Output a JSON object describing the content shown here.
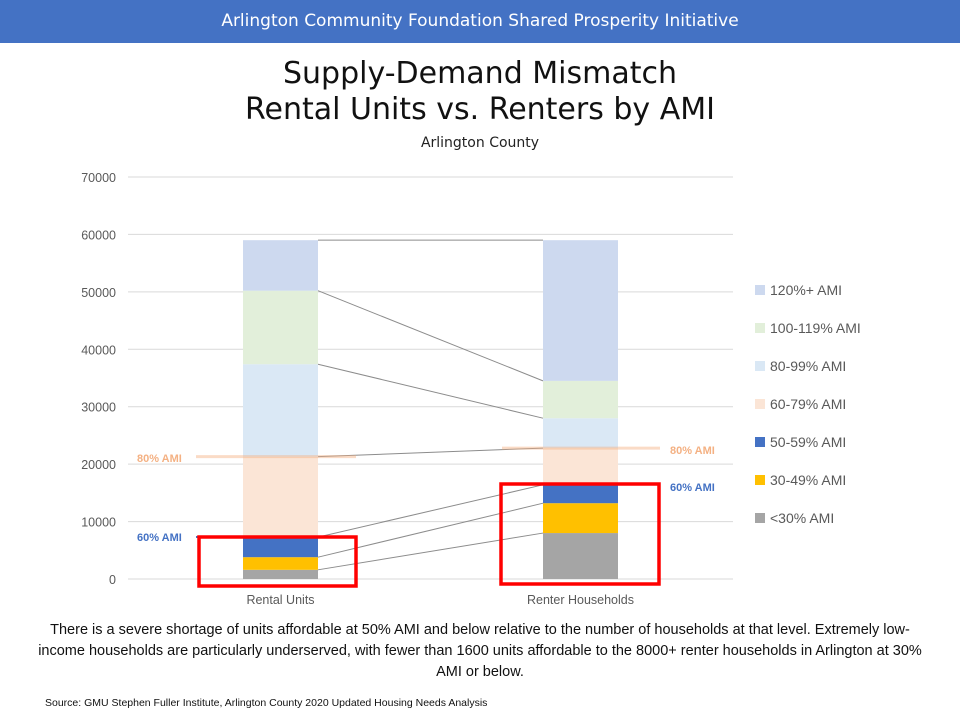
{
  "banner": "Arlington Community Foundation Shared Prosperity Initiative",
  "title_line1": "Supply-Demand  Mismatch",
  "title_line2": "Rental Units vs. Renters by AMI",
  "subtitle": "Arlington County",
  "caption": "There is a severe shortage of units affordable at 50% AMI and below relative to the number of households at that level. Extremely low-income households are particularly underserved, with fewer than 1600 units affordable to the 8000+ renter households in Arlington at 30% AMI or below.",
  "source": "Source: GMU Stephen  Fuller Institute, Arlington County 2020 Updated Housing Needs Analysis",
  "annotations": {
    "ami80_left": "80% AMI",
    "ami60_left": "60% AMI",
    "ami80_right": "80% AMI",
    "ami60_right": "60% AMI",
    "ami80_color": "#f4b183",
    "ami60_color": "#4472c4",
    "highlight_color": "#ff0000"
  },
  "chart_data": {
    "type": "bar",
    "stacked": true,
    "title": "Supply-Demand Mismatch Rental Units vs. Renters by AMI",
    "subtitle": "Arlington County",
    "categories": [
      "Rental Units",
      "Renter Households"
    ],
    "ylim": [
      0,
      70000
    ],
    "yticks": [
      0,
      10000,
      20000,
      30000,
      40000,
      50000,
      60000,
      70000
    ],
    "ytick_labels": [
      "0",
      "10000",
      "20000",
      "30000",
      "40000",
      "50000",
      "60000",
      "70000"
    ],
    "grid": true,
    "legend_position": "right",
    "series_lines": true,
    "series": [
      {
        "name": "<30% AMI",
        "color": "#a5a5a5",
        "values": [
          1600,
          8000
        ]
      },
      {
        "name": "30-49% AMI",
        "color": "#ffc000",
        "values": [
          2200,
          5200
        ]
      },
      {
        "name": "50-59% AMI",
        "color": "#4472c4",
        "values": [
          3500,
          3200
        ]
      },
      {
        "name": "60-79% AMI",
        "color": "#fbe5d6",
        "values": [
          14000,
          6400
        ]
      },
      {
        "name": "80-99% AMI",
        "color": "#dae8f5",
        "values": [
          16100,
          5200
        ]
      },
      {
        "name": "100-119% AMI",
        "color": "#e2efda",
        "values": [
          12800,
          6500
        ]
      },
      {
        "name": "120%+ AMI",
        "color": "#cdd9ef",
        "values": [
          8800,
          24500
        ]
      }
    ]
  }
}
